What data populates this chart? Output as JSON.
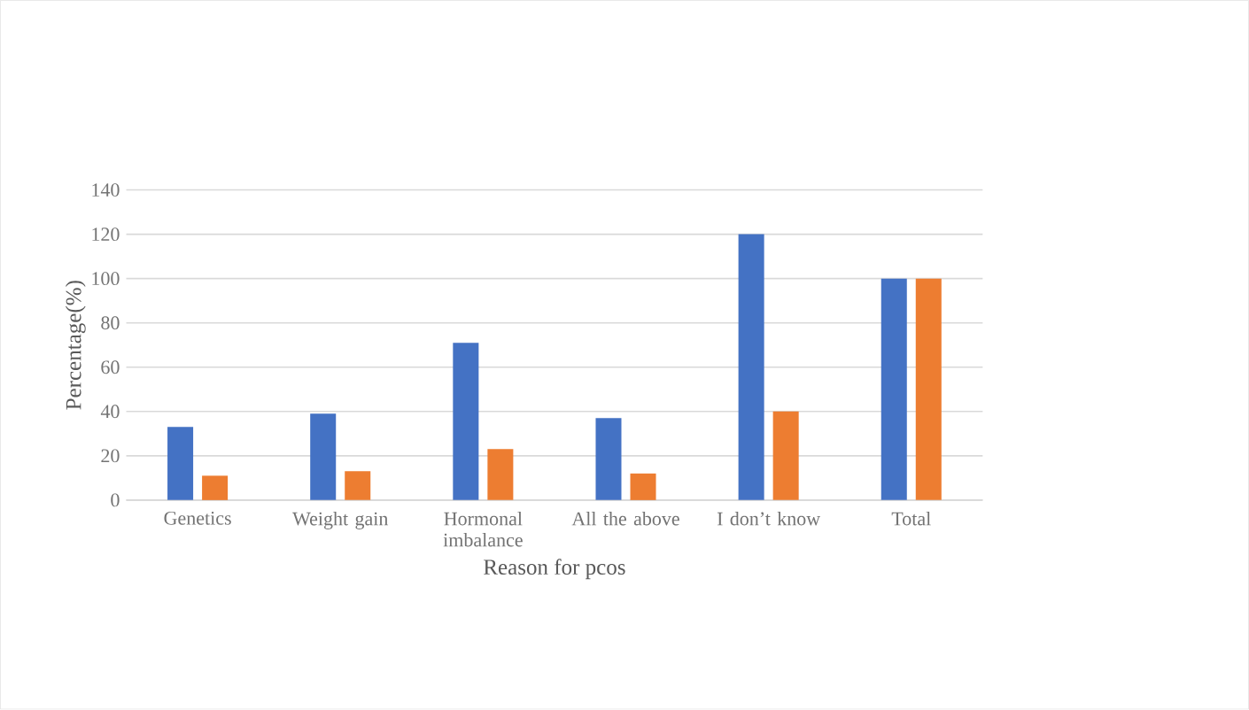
{
  "chart_data": {
    "type": "bar",
    "xlabel": "Reason for pcos",
    "ylabel": "Percentage(%)",
    "categories": [
      "Genetics",
      "Weight gain",
      "Hormonal imbalance",
      "All the above",
      "I don’t know",
      "Total"
    ],
    "series": [
      {
        "color": "#4472c4",
        "values": [
          33,
          39,
          71,
          37,
          120,
          100
        ]
      },
      {
        "color": "#ed7d31",
        "values": [
          11,
          13,
          23,
          12,
          40,
          100
        ]
      }
    ],
    "ylim": [
      0,
      140
    ],
    "yticks": [
      0,
      20,
      40,
      60,
      80,
      100,
      120,
      140
    ],
    "grid": "y"
  }
}
